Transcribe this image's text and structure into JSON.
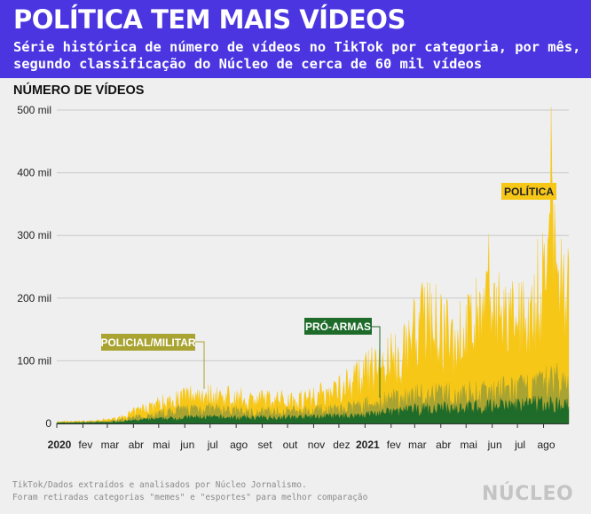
{
  "header": {
    "title": "POLÍTICA TEM MAIS VÍDEOS",
    "subtitle": "Série histórica de número de vídeos no TikTok por categoria, por mês, segundo classificação do Núcleo de cerca de 60 mil vídeos"
  },
  "chart_data": {
    "type": "area",
    "stacked": true,
    "ylabel": "NÚMERO DE VÍDEOS",
    "ylim": [
      0,
      500000
    ],
    "y_ticks": [
      {
        "value": 0,
        "label": "0"
      },
      {
        "value": 100000,
        "label": "100 mil"
      },
      {
        "value": 200000,
        "label": "200 mil"
      },
      {
        "value": 300000,
        "label": "300 mil"
      },
      {
        "value": 400000,
        "label": "400 mil"
      },
      {
        "value": 500000,
        "label": "500 mil"
      }
    ],
    "x_range": [
      "2020-01-01",
      "2021-08-31"
    ],
    "x_ticks": [
      {
        "date": "2020-01-01",
        "label": "2020",
        "bold": true
      },
      {
        "date": "2020-02-01",
        "label": "fev"
      },
      {
        "date": "2020-03-01",
        "label": "mar"
      },
      {
        "date": "2020-04-01",
        "label": "abr"
      },
      {
        "date": "2020-05-01",
        "label": "mai"
      },
      {
        "date": "2020-06-01",
        "label": "jun"
      },
      {
        "date": "2020-07-01",
        "label": "jul"
      },
      {
        "date": "2020-08-01",
        "label": "ago"
      },
      {
        "date": "2020-09-01",
        "label": "set"
      },
      {
        "date": "2020-10-01",
        "label": "out"
      },
      {
        "date": "2020-11-01",
        "label": "nov"
      },
      {
        "date": "2020-12-01",
        "label": "dez"
      },
      {
        "date": "2021-01-01",
        "label": "2021",
        "bold": true
      },
      {
        "date": "2021-02-01",
        "label": "fev"
      },
      {
        "date": "2021-03-01",
        "label": "mar"
      },
      {
        "date": "2021-04-01",
        "label": "abr"
      },
      {
        "date": "2021-05-01",
        "label": "mai"
      },
      {
        "date": "2021-06-01",
        "label": "jun"
      },
      {
        "date": "2021-07-01",
        "label": "jul"
      },
      {
        "date": "2021-08-01",
        "label": "ago"
      }
    ],
    "grid": true,
    "series": [
      {
        "name": "PRÓ-ARMAS",
        "color": "#1e6b2a",
        "points": [
          [
            "2020-01-01",
            1000
          ],
          [
            "2020-03-01",
            2000
          ],
          [
            "2020-04-15",
            6000
          ],
          [
            "2020-06-15",
            10000
          ],
          [
            "2020-08-15",
            9000
          ],
          [
            "2020-10-15",
            10000
          ],
          [
            "2020-12-15",
            12000
          ],
          [
            "2021-01-15",
            16000
          ],
          [
            "2021-03-01",
            22000
          ],
          [
            "2021-04-15",
            25000
          ],
          [
            "2021-06-01",
            28000
          ],
          [
            "2021-07-15",
            30000
          ],
          [
            "2021-08-15",
            32000
          ],
          [
            "2021-08-31",
            28000
          ]
        ]
      },
      {
        "name": "POLICIAL/MILITAR",
        "color": "#a9a332",
        "points": [
          [
            "2020-01-01",
            1500
          ],
          [
            "2020-03-01",
            3000
          ],
          [
            "2020-04-15",
            12000
          ],
          [
            "2020-06-15",
            25000
          ],
          [
            "2020-08-15",
            18000
          ],
          [
            "2020-10-15",
            20000
          ],
          [
            "2020-12-15",
            25000
          ],
          [
            "2021-01-15",
            33000
          ],
          [
            "2021-03-01",
            45000
          ],
          [
            "2021-04-15",
            45000
          ],
          [
            "2021-06-01",
            52000
          ],
          [
            "2021-07-15",
            55000
          ],
          [
            "2021-08-15",
            70000
          ],
          [
            "2021-08-31",
            58000
          ]
        ]
      },
      {
        "name": "POLÍTICA",
        "color": "#f7c718",
        "points": [
          [
            "2020-01-01",
            2500
          ],
          [
            "2020-02-15",
            4000
          ],
          [
            "2020-03-15",
            8000
          ],
          [
            "2020-04-15",
            25000
          ],
          [
            "2020-06-15",
            48000
          ],
          [
            "2020-08-15",
            38000
          ],
          [
            "2020-10-15",
            38000
          ],
          [
            "2020-11-20",
            50000
          ],
          [
            "2020-12-15",
            65000
          ],
          [
            "2021-01-15",
            90000
          ],
          [
            "2021-02-15",
            110000
          ],
          [
            "2021-03-10",
            175000
          ],
          [
            "2021-04-15",
            130000
          ],
          [
            "2021-05-10",
            160000
          ],
          [
            "2021-06-01",
            175000
          ],
          [
            "2021-07-01",
            160000
          ],
          [
            "2021-07-20",
            190000
          ],
          [
            "2021-08-05",
            240000
          ],
          [
            "2021-08-15",
            270000
          ],
          [
            "2021-08-31",
            200000
          ]
        ],
        "peaks": [
          [
            "2021-03-10",
            225000
          ],
          [
            "2021-05-28",
            302000
          ],
          [
            "2021-08-10",
            505000
          ],
          [
            "2021-08-14",
            350000
          ]
        ]
      }
    ],
    "annotations": [
      {
        "text": "POLÍTICA",
        "series": "POLÍTICA"
      },
      {
        "text": "PRÓ-ARMAS",
        "series": "PRÓ-ARMAS"
      },
      {
        "text": "POLICIAL/MILITAR",
        "series": "POLICIAL/MILITAR"
      }
    ]
  },
  "footer": {
    "line1": "TikTok/Dados extraídos e analisados por Núcleo Jornalismo.",
    "line2": "Foram retiradas categorias \"memes\" e \"esportes\" para melhor comparação"
  },
  "brand": {
    "logo": "NÚCLEO"
  }
}
